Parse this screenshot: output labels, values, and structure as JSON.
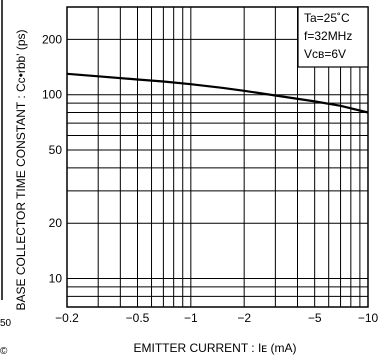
{
  "chart_data": {
    "type": "line",
    "title": "",
    "xlabel": "EMITTER  CURRENT : Iᴇ (mA)",
    "ylabel": "BASE  COLLECTOR  TIME  CONSTANT : Cc•rbb' (ps)",
    "x_scale": "log",
    "y_scale": "log",
    "xlim": [
      -0.2,
      -10
    ],
    "ylim": [
      7,
      300
    ],
    "grid": true,
    "x_tick_labels": [
      "−0.2",
      "−0.5",
      "−1",
      "−2",
      "−5",
      "−10"
    ],
    "x_tick_values": [
      -0.2,
      -0.5,
      -1,
      -2,
      -5,
      -10
    ],
    "y_tick_labels": [
      "10",
      "20",
      "50",
      "100",
      "200"
    ],
    "y_tick_values": [
      10,
      20,
      50,
      100,
      200
    ],
    "x_grid_values": [
      -0.2,
      -0.3,
      -0.4,
      -0.5,
      -0.6,
      -0.7,
      -0.8,
      -0.9,
      -1,
      -2,
      -3,
      -4,
      -5,
      -6,
      -7,
      -8,
      -9,
      -10
    ],
    "y_grid_values": [
      8,
      9,
      10,
      20,
      30,
      40,
      50,
      60,
      70,
      80,
      90,
      100,
      200,
      300
    ],
    "series": [
      {
        "x": [
          -0.2,
          -0.3,
          -0.5,
          -0.7,
          -1,
          -1.5,
          -2,
          -3,
          -5,
          -7,
          -10
        ],
        "y": [
          130,
          126,
          121,
          118,
          114,
          109,
          105,
          99,
          92,
          87,
          80
        ]
      }
    ],
    "annotations": [
      "Ta=25˚C",
      "f=32MHz",
      "Vᴄʙ=6V"
    ],
    "annotation_position": "top-right",
    "left_edge_fragments": [
      "50",
      "©"
    ]
  }
}
